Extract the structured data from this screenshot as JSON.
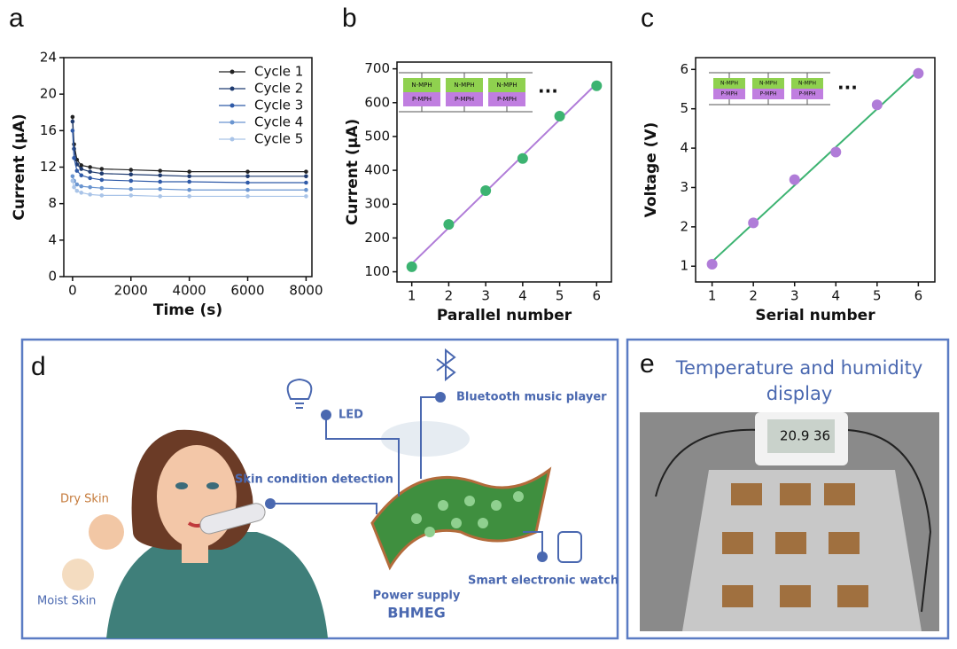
{
  "chart_data": [
    {
      "type": "line",
      "panel_label": "a",
      "xlabel": "Time (s)",
      "ylabel": "Current (μA)",
      "x": [
        0,
        50,
        150,
        300,
        600,
        1000,
        2000,
        3000,
        4000,
        6000,
        8000
      ],
      "series": [
        {
          "name": "Cycle 1",
          "color": "#222222",
          "values": [
            17.5,
            14.5,
            12.8,
            12.2,
            12.0,
            11.8,
            11.7,
            11.6,
            11.5,
            11.5,
            11.5
          ]
        },
        {
          "name": "Cycle 2",
          "color": "#1f3b70",
          "values": [
            17.0,
            14.0,
            12.3,
            11.8,
            11.5,
            11.3,
            11.2,
            11.1,
            11.0,
            11.0,
            11.0
          ]
        },
        {
          "name": "Cycle 3",
          "color": "#2f5aa8",
          "values": [
            16.0,
            13.0,
            11.6,
            11.1,
            10.8,
            10.6,
            10.5,
            10.4,
            10.4,
            10.3,
            10.3
          ]
        },
        {
          "name": "Cycle 4",
          "color": "#6a95d0",
          "values": [
            11.0,
            10.5,
            10.1,
            9.9,
            9.8,
            9.7,
            9.6,
            9.6,
            9.5,
            9.5,
            9.5
          ]
        },
        {
          "name": "Cycle 5",
          "color": "#a9c4e8",
          "values": [
            10.5,
            9.8,
            9.4,
            9.2,
            9.0,
            8.9,
            8.9,
            8.8,
            8.8,
            8.8,
            8.8
          ]
        }
      ],
      "xlim": [
        -300,
        8200
      ],
      "xticks": [
        0,
        2000,
        4000,
        6000,
        8000
      ],
      "ylim": [
        0,
        24
      ],
      "yticks": [
        0,
        4,
        8,
        12,
        16,
        20,
        24
      ],
      "legend": "upper right"
    },
    {
      "type": "scatter",
      "panel_label": "b",
      "xlabel": "Parallel number",
      "ylabel": "Current  (μA)",
      "x": [
        1,
        2,
        3,
        4,
        5,
        6
      ],
      "values": [
        115,
        240,
        340,
        435,
        560,
        650
      ],
      "color": "#3cb371",
      "trendline": true,
      "trendline_color": "#b07cd8",
      "xlim": [
        0.6,
        6.4
      ],
      "xticks": [
        1,
        2,
        3,
        4,
        5,
        6
      ],
      "ylim": [
        70,
        720
      ],
      "yticks": [
        100,
        200,
        300,
        400,
        500,
        600,
        700
      ],
      "annotations": [
        "N-MPH",
        "P-MPH",
        "···"
      ]
    },
    {
      "type": "scatter",
      "panel_label": "c",
      "xlabel": "Serial number",
      "ylabel": "Voltage (V)",
      "x": [
        1,
        2,
        3,
        4,
        5,
        6
      ],
      "values": [
        1.05,
        2.1,
        3.2,
        3.9,
        5.1,
        5.9
      ],
      "color": "#b07cd8",
      "trendline": true,
      "trendline_color": "#3cb371",
      "xlim": [
        0.6,
        6.4
      ],
      "xticks": [
        1,
        2,
        3,
        4,
        5,
        6
      ],
      "ylim": [
        0.6,
        6.3
      ],
      "yticks": [
        1,
        2,
        3,
        4,
        5,
        6
      ],
      "annotations": [
        "N-MPH",
        "P-MPH",
        "···"
      ]
    }
  ],
  "panels": {
    "d": {
      "label": "d",
      "led": "LED",
      "bluetooth": "Bluetooth music player",
      "skin": "Skin condition detection",
      "dry": "Dry Skin",
      "moist": "Moist Skin",
      "power": "Power supply",
      "device": "BHMEG",
      "watch": "Smart electronic watch"
    },
    "e": {
      "label": "e",
      "title": [
        "Temperature and humidity",
        "display"
      ],
      "temperature": "20.9",
      "humidity": "36"
    }
  }
}
